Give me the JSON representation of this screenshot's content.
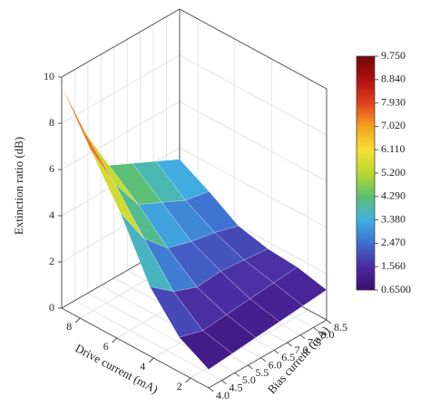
{
  "chart_data": {
    "type": "surface",
    "zlabel": "Extinction ratio (dB)",
    "xlabel": "Drive current (mA)",
    "ylabel": "Bias current (mA)",
    "x": [
      1,
      2.6,
      4.2,
      5.8,
      7.4,
      9
    ],
    "y": [
      4,
      4.9,
      5.8,
      6.7,
      7.6,
      8.5
    ],
    "z": [
      [
        0.8,
        0.9,
        1.0,
        1.1,
        1.2,
        1.3
      ],
      [
        1.5,
        1.2,
        1.3,
        1.4,
        1.5,
        1.6
      ],
      [
        3.0,
        2.2,
        1.8,
        1.9,
        1.8,
        1.7
      ],
      [
        5.5,
        3.8,
        2.8,
        2.5,
        2.3,
        2.0
      ],
      [
        7.5,
        5.5,
        4.0,
        3.5,
        3.0,
        2.8
      ],
      [
        9.6,
        7.0,
        5.0,
        4.5,
        4.0,
        3.5
      ]
    ],
    "xlim": [
      1,
      9
    ],
    "xticks": [
      2,
      4,
      6,
      8
    ],
    "ylim": [
      4,
      8.5
    ],
    "yticks": [
      {
        "value": 4,
        "label": "4.0"
      },
      {
        "value": 4.5,
        "label": "4.5"
      },
      {
        "value": 5,
        "label": "5.0"
      },
      {
        "value": 5.5,
        "label": "5.5"
      },
      {
        "value": 6,
        "label": "6.0"
      },
      {
        "value": 6.5,
        "label": "6.5"
      },
      {
        "value": 7,
        "label": "7.0"
      },
      {
        "value": 7.5,
        "label": "7.5"
      },
      {
        "value": 8,
        "label": "8.0"
      },
      {
        "value": 8.5,
        "label": "8.5"
      }
    ],
    "zlim": [
      0,
      10
    ],
    "zticks": [
      0,
      2,
      4,
      6,
      8,
      10
    ],
    "grid": true,
    "colormap": [
      "#3b0f70",
      "#4b2aa0",
      "#3f6fd0",
      "#40b0e0",
      "#5cc070",
      "#b8d830",
      "#f5e030",
      "#f5a020",
      "#e04020",
      "#b01010",
      "#700808"
    ],
    "colorbar": {
      "lim": [
        0.65,
        9.75
      ],
      "ticks": [
        {
          "value": 9.75,
          "label": "9.750"
        },
        {
          "value": 8.84,
          "label": "8.840"
        },
        {
          "value": 7.93,
          "label": "7.930"
        },
        {
          "value": 7.02,
          "label": "7.020"
        },
        {
          "value": 6.11,
          "label": "6.110"
        },
        {
          "value": 5.2,
          "label": "5.200"
        },
        {
          "value": 4.29,
          "label": "4.290"
        },
        {
          "value": 3.38,
          "label": "3.380"
        },
        {
          "value": 2.47,
          "label": "2.470"
        },
        {
          "value": 1.56,
          "label": "1.560"
        },
        {
          "value": 0.65,
          "label": "0.6500"
        }
      ]
    }
  }
}
